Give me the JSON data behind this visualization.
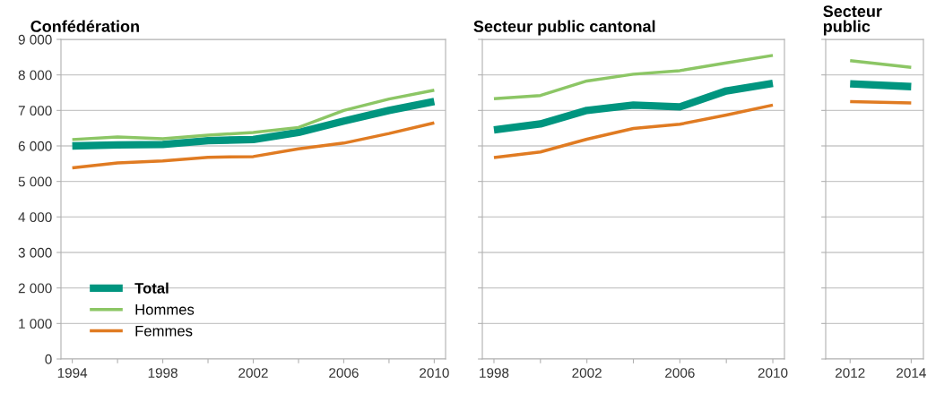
{
  "chart_data": [
    {
      "type": "line",
      "title": "Confédération",
      "x": [
        1994,
        1996,
        1998,
        2000,
        2002,
        2004,
        2006,
        2008,
        2010
      ],
      "xlim": [
        1993.5,
        2010.5
      ],
      "xticks": [
        1994,
        {
          "value": 1996,
          "label": null
        },
        1998,
        {
          "value": 2000,
          "label": null
        },
        2002,
        {
          "value": 2004,
          "label": null
        },
        2006,
        {
          "value": 2008,
          "label": null
        },
        2010
      ],
      "ylim": [
        0,
        9000
      ],
      "yticks": [
        0,
        {
          "value": 1000,
          "label": "1 000"
        },
        {
          "value": 2000,
          "label": "2 000"
        },
        {
          "value": 3000,
          "label": "3 000"
        },
        {
          "value": 4000,
          "label": "4 000"
        },
        {
          "value": 5000,
          "label": "5 000"
        },
        {
          "value": 6000,
          "label": "6 000"
        },
        {
          "value": 7000,
          "label": "7 000"
        },
        {
          "value": 8000,
          "label": "8 000"
        },
        {
          "value": 9000,
          "label": "9 000"
        }
      ],
      "grid": "y",
      "legend": "bottom left",
      "series": [
        {
          "name": "Total",
          "color": "#00957f",
          "values": [
            6000,
            6030,
            6040,
            6150,
            6180,
            6380,
            6700,
            7000,
            7250
          ]
        },
        {
          "name": "Hommes",
          "color": "#8cc665",
          "values": [
            6180,
            6250,
            6200,
            6300,
            6380,
            6520,
            7000,
            7320,
            7570
          ]
        },
        {
          "name": "Femmes",
          "color": "#e07b22",
          "values": [
            5380,
            5520,
            5580,
            5680,
            5700,
            5920,
            6080,
            6350,
            6650
          ]
        }
      ]
    },
    {
      "type": "line",
      "title": "Secteur public cantonal",
      "x": [
        1998,
        2000,
        2002,
        2004,
        2006,
        2008,
        2010
      ],
      "xlim": [
        1997.5,
        2010.5
      ],
      "xticks": [
        1998,
        {
          "value": 2000,
          "label": null
        },
        2002,
        {
          "value": 2004,
          "label": null
        },
        2006,
        {
          "value": 2008,
          "label": null
        },
        2010
      ],
      "ylim": [
        0,
        9000
      ],
      "yticks": [
        0,
        1000,
        2000,
        3000,
        4000,
        5000,
        6000,
        7000,
        8000,
        9000
      ],
      "tick_labels": "x",
      "grid": "y",
      "series": [
        {
          "color": "#00957f",
          "values": [
            6450,
            6620,
            7000,
            7150,
            7100,
            7550,
            7760
          ]
        },
        {
          "color": "#8cc665",
          "values": [
            7330,
            7420,
            7830,
            8020,
            8120,
            8340,
            8550
          ]
        },
        {
          "color": "#e07b22",
          "values": [
            5670,
            5830,
            6190,
            6490,
            6610,
            6870,
            7150
          ]
        }
      ]
    },
    {
      "type": "line",
      "title": "Secteur public",
      "x": [
        2012,
        2014
      ],
      "xlim": [
        2011.2,
        2014.4
      ],
      "xticks": [
        2012,
        2014
      ],
      "ylim": [
        0,
        9000
      ],
      "yticks": [
        0,
        1000,
        2000,
        3000,
        4000,
        5000,
        6000,
        7000,
        8000,
        9000
      ],
      "tick_labels": "x",
      "grid": "y",
      "series": [
        {
          "color": "#00957f",
          "values": [
            7750,
            7670
          ]
        },
        {
          "color": "#8cc665",
          "values": [
            8400,
            8210
          ]
        },
        {
          "color": "#e07b22",
          "values": [
            7250,
            7210
          ]
        }
      ]
    }
  ]
}
